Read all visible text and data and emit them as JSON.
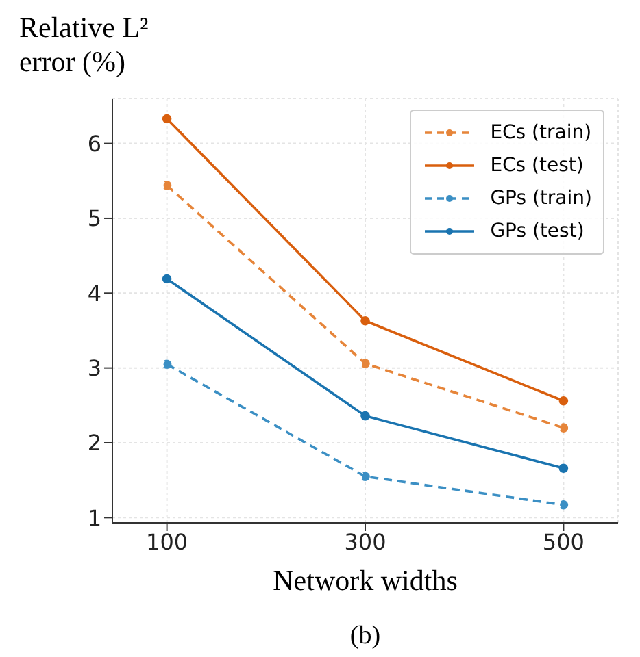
{
  "chart_data": {
    "type": "line",
    "xlabel": "Network widths",
    "ylabel": "Relative L² error (%)",
    "annotations": [
      "(b)"
    ],
    "x": [
      100,
      300,
      500
    ],
    "xlim": [
      45,
      555
    ],
    "xticks": [
      100,
      300,
      500
    ],
    "ylim": [
      0.93,
      6.6
    ],
    "yticks": [
      1,
      2,
      3,
      4,
      5,
      6
    ],
    "grid": true,
    "legend": "top right",
    "marker": "circle",
    "series": [
      {
        "name": "ECs (train)",
        "color": "#e6853a",
        "line_style": "dashed",
        "values": [
          5.44,
          3.06,
          2.2
        ]
      },
      {
        "name": "ECs (test)",
        "color": "#d95f0e",
        "line_style": "solid",
        "values": [
          6.33,
          3.63,
          2.56
        ]
      },
      {
        "name": "GPs (train)",
        "color": "#3b8fc4",
        "line_style": "dashed",
        "values": [
          3.05,
          1.55,
          1.17
        ]
      },
      {
        "name": "GPs (test)",
        "color": "#1a74b0",
        "line_style": "solid",
        "values": [
          4.19,
          2.36,
          1.66
        ]
      }
    ]
  }
}
